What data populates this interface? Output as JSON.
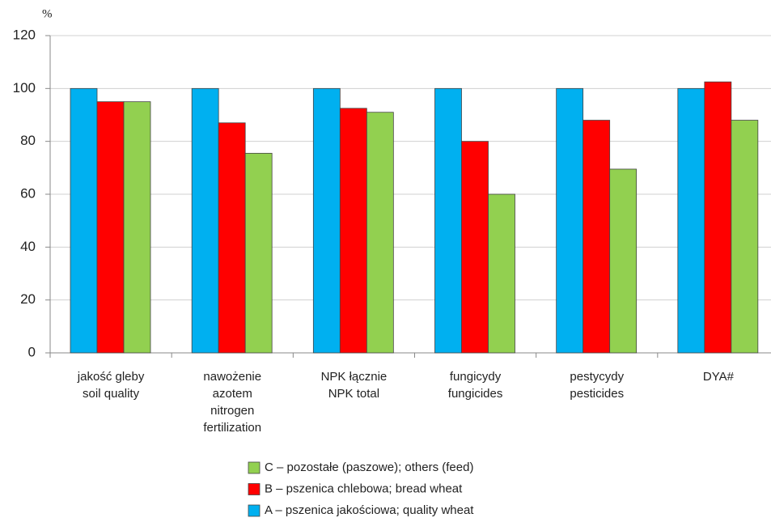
{
  "chart_data": {
    "type": "bar",
    "y_label": "%",
    "categories": [
      [
        "jakość gleby",
        "soil quality"
      ],
      [
        "nawożenie",
        "azotem",
        "nitrogen",
        "fertilization"
      ],
      [
        "NPK łącznie",
        "NPK total"
      ],
      [
        "fungicydy",
        "fungicides"
      ],
      [
        "pestycydy",
        "pesticides"
      ],
      [
        "DYA#"
      ]
    ],
    "series": [
      {
        "name": "A – pszenica jakościowa; quality wheat",
        "color": "#00b0f0",
        "values": [
          100,
          100,
          100,
          100,
          100,
          100
        ]
      },
      {
        "name": "B – pszenica chlebowa; bread wheat",
        "color": "#ff0000",
        "values": [
          95,
          87,
          92.5,
          80,
          88,
          102.5
        ]
      },
      {
        "name": "C – pozostałe (paszowe); others (feed)",
        "color": "#92d050",
        "values": [
          95,
          75.5,
          91,
          60,
          69.5,
          88
        ]
      }
    ],
    "ylim": [
      0,
      120
    ],
    "yticks": [
      0,
      20,
      40,
      60,
      80,
      100,
      120
    ],
    "grid": true
  }
}
